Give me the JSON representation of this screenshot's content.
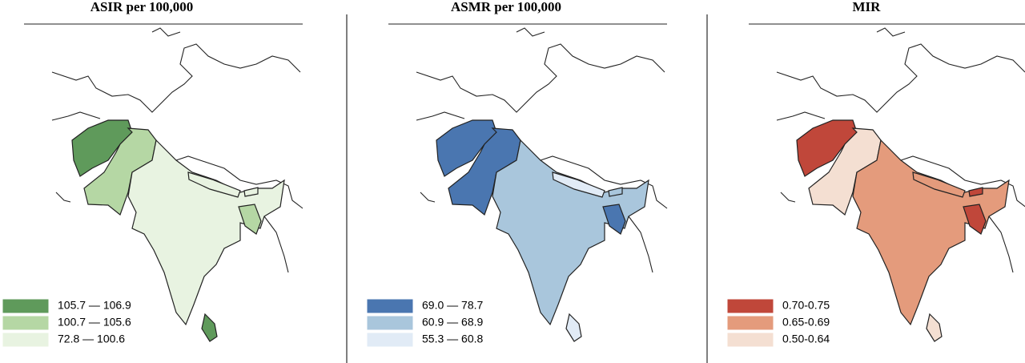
{
  "panels": [
    {
      "title": "ASIR per 100,000",
      "legend": [
        {
          "label": "105.7 — 106.9",
          "color": "#5f9a5b"
        },
        {
          "label": "100.7 — 105.6",
          "color": "#b5d7a4"
        },
        {
          "label": "72.8 — 100.6",
          "color": "#e8f3e1"
        }
      ]
    },
    {
      "title": "ASMR per 100,000",
      "legend": [
        {
          "label": "69.0 — 78.7",
          "color": "#4a76b0"
        },
        {
          "label": "60.9 — 68.9",
          "color": "#a9c6dc"
        },
        {
          "label": "55.3 — 60.8",
          "color": "#e1ebf6"
        }
      ]
    },
    {
      "title": "MIR",
      "legend": [
        {
          "label": "0.70-0.75",
          "color": "#c0473a"
        },
        {
          "label": "0.65-0.69",
          "color": "#e49b7c"
        },
        {
          "label": "0.50-0.64",
          "color": "#f4dfd2"
        }
      ]
    }
  ]
}
